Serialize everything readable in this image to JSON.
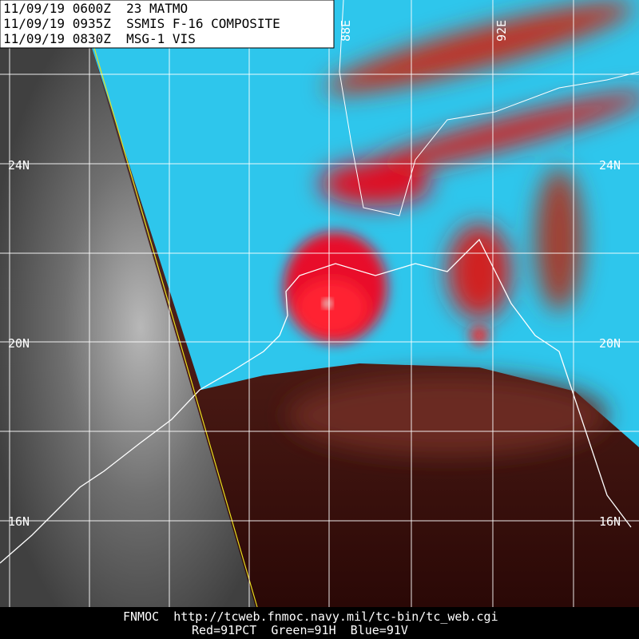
{
  "header": {
    "lines": [
      "11/09/19 0600Z  23 MATMO",
      "11/09/19 0935Z  SSMIS F-16 COMPOSITE",
      "11/09/19 0830Z  MSG-1 VIS"
    ]
  },
  "latitude_labels": [
    "24N",
    "20N",
    "16N"
  ],
  "longitude_labels": [
    "88E",
    "92E"
  ],
  "footer": {
    "lines": [
      "FNMOC  http://tcweb.fnmoc.navy.mil/tc-bin/tc_web.cgi",
      "Red=91PCT  Green=91H  Blue=91V"
    ]
  }
}
